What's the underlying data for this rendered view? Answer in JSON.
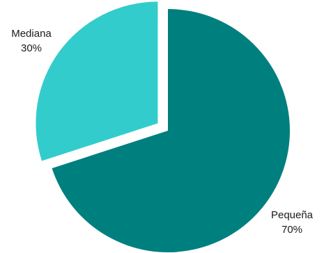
{
  "chart_data": {
    "type": "pie",
    "title": "",
    "slices": [
      {
        "label": "Pequeña",
        "value": 70,
        "percent_label": "70%",
        "color": "#007f7f",
        "exploded": false
      },
      {
        "label": "Mediana",
        "value": 30,
        "percent_label": "30%",
        "color": "#33cccc",
        "exploded": true
      }
    ],
    "legend": "none",
    "labels": "outside"
  }
}
